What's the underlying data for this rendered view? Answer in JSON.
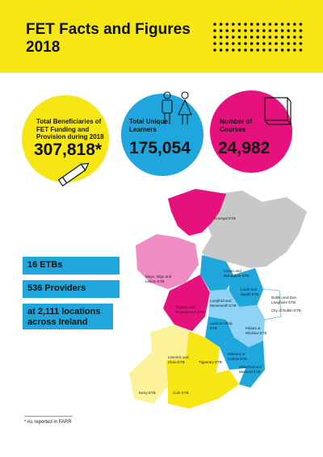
{
  "header": {
    "title_line1": "FET Facts and Figures",
    "title_line2": "2018"
  },
  "colors": {
    "yellow": "#f5e614",
    "blue": "#1fa6dd",
    "magenta": "#e7117d",
    "grey": "#c8c8c8",
    "pink": "#f08cc4",
    "lightblue": "#8fd3f4",
    "paleyellow": "#fbf29a"
  },
  "stats": {
    "beneficiaries": {
      "label": "Total Beneficiaries of FET Funding and Provision during 2018",
      "value": "307,818*",
      "icon": "pencil-icon"
    },
    "learners": {
      "label": "Total Unique Learners",
      "value": "175,054",
      "icon": "people-icon"
    },
    "courses": {
      "label": "Number of Courses",
      "value": "24,982",
      "icon": "book-icon"
    }
  },
  "summary": {
    "etbs": "16 ETBs",
    "providers": "536 Providers",
    "locations": "at 2,111 locations across Ireland"
  },
  "map_labels": {
    "donegal": "Donegal ETB",
    "cavan": "Cavan and Monaghan ETB",
    "mayo": "Mayo, Sligo and Leitrim ETB",
    "louth": "Louth and Meath ETB",
    "longford": "Longford and Westmeath ETB",
    "dublin": "Dublin and Dun Laoghaire ETB",
    "cityofdublin": "City of Dublin ETB",
    "galway": "Galway and Roscommon ETB",
    "laois": "Laois & Offaly ETB",
    "kildare": "Kildare & Wicklow ETB",
    "kilkenny": "Kilkenny & Carlow ETB",
    "limerick": "Limerick and Clare ETB",
    "tipperary": "Tipperary ETB",
    "waterford": "Waterford and Wexford ETB",
    "kerry": "Kerry ETB",
    "cork": "Cork ETB"
  },
  "footnote": "* As reported in FARR"
}
